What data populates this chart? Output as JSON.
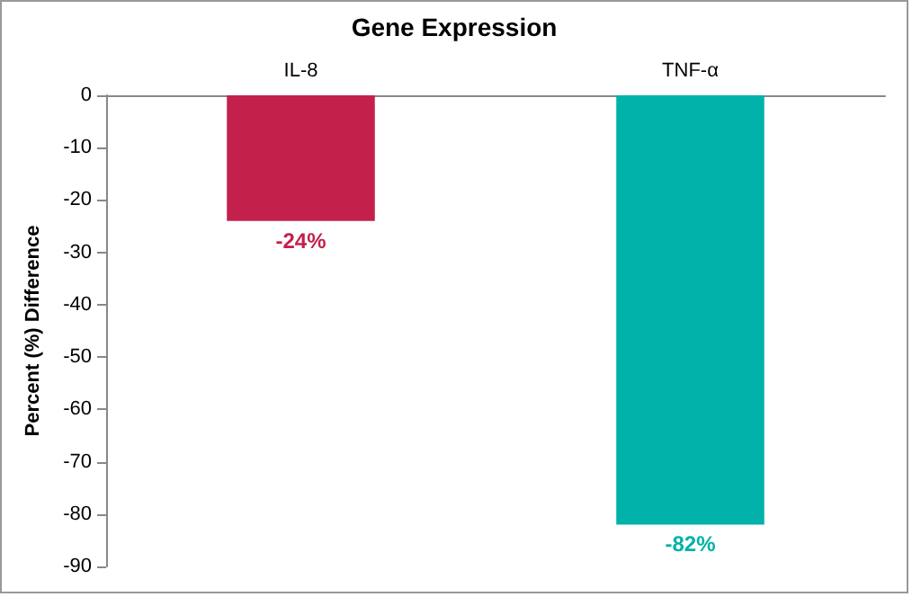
{
  "chart_data": {
    "type": "bar",
    "title": "Gene Expression",
    "ylabel": "Percent (%) Difference",
    "categories": [
      "IL-8",
      "TNF-α"
    ],
    "values": [
      -24,
      -82
    ],
    "colors": [
      "#c4204c",
      "#00b2a9"
    ],
    "value_labels": [
      "-24%",
      "-82%"
    ],
    "ylim": [
      -90,
      0
    ],
    "yticks": [
      0,
      -10,
      -20,
      -30,
      -40,
      -50,
      -60,
      -70,
      -80,
      -90
    ],
    "grid": false
  }
}
